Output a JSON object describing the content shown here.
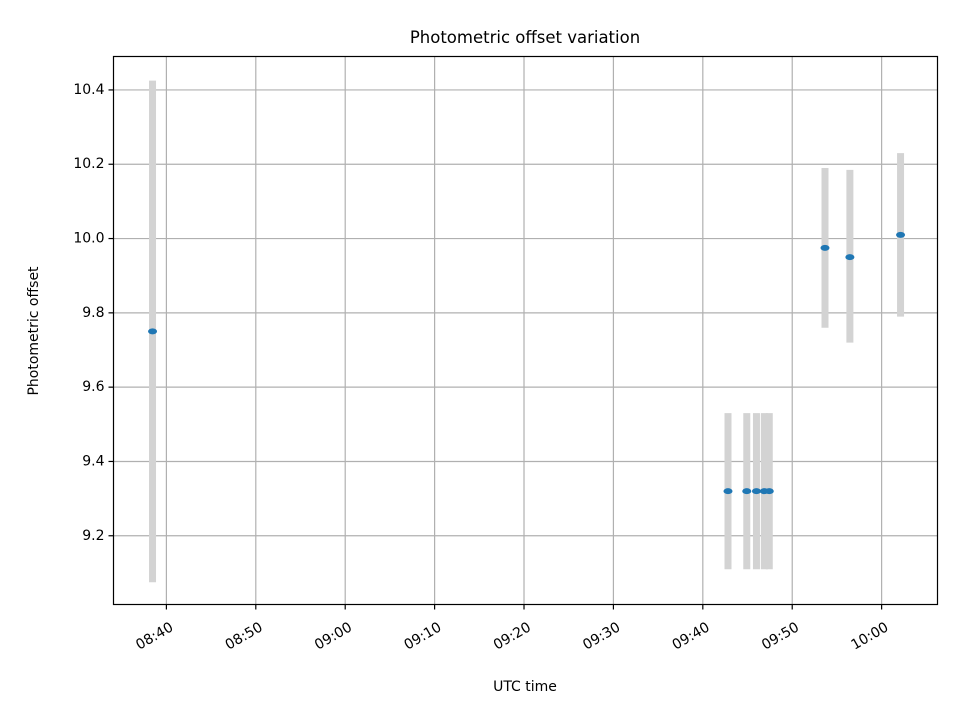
{
  "chart_data": {
    "type": "scatter",
    "title": "Photometric offset variation",
    "xlabel": "UTC time",
    "ylabel": "Photometric offset",
    "x_ticks": [
      "08:40",
      "08:50",
      "09:00",
      "09:10",
      "09:20",
      "09:30",
      "09:40",
      "09:50",
      "10:00"
    ],
    "y_ticks": [
      "9.2",
      "9.4",
      "9.6",
      "9.8",
      "10.0",
      "10.2",
      "10.4"
    ],
    "xlim": [
      "08:34:05",
      "10:06:15"
    ],
    "ylim": [
      9.015,
      10.49
    ],
    "grid": true,
    "marker_color": "#1f77b4",
    "errorbar_color": "#d3d3d3",
    "points": [
      {
        "x": "08:38:27",
        "y": 9.75,
        "yerr_low": 9.075,
        "yerr_high": 10.425
      },
      {
        "x": "09:42:49",
        "y": 9.32,
        "yerr_low": 9.11,
        "yerr_high": 9.53
      },
      {
        "x": "09:44:55",
        "y": 9.32,
        "yerr_low": 9.11,
        "yerr_high": 9.53
      },
      {
        "x": "09:46:00",
        "y": 9.32,
        "yerr_low": 9.11,
        "yerr_high": 9.53
      },
      {
        "x": "09:46:53",
        "y": 9.32,
        "yerr_low": 9.11,
        "yerr_high": 9.53
      },
      {
        "x": "09:47:26",
        "y": 9.32,
        "yerr_low": 9.11,
        "yerr_high": 9.53
      },
      {
        "x": "09:53:40",
        "y": 9.975,
        "yerr_low": 9.76,
        "yerr_high": 10.19
      },
      {
        "x": "09:56:27",
        "y": 9.95,
        "yerr_low": 9.72,
        "yerr_high": 10.185
      },
      {
        "x": "10:02:07",
        "y": 10.01,
        "yerr_low": 9.79,
        "yerr_high": 10.23
      }
    ]
  }
}
